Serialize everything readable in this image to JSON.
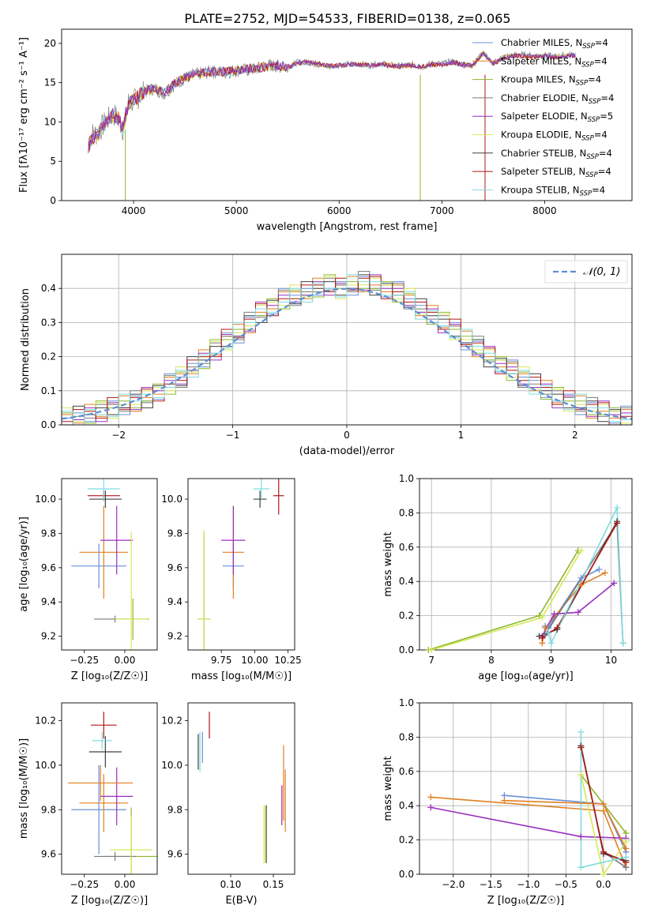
{
  "figure_title": "PLATE=2752, MJD=54533, FIBERID=0138, z=0.065",
  "series": [
    {
      "name": "Chabrier MILES, N",
      "sub": "SSP",
      "tail": "=4",
      "color": "#6a8fd8"
    },
    {
      "name": "Salpeter MILES, N",
      "sub": "SSP",
      "tail": "=4",
      "color": "#e07f20"
    },
    {
      "name": "Kroupa MILES, N",
      "sub": "SSP",
      "tail": "=4",
      "color": "#8cb82a"
    },
    {
      "name": "Chabrier ELODIE, N",
      "sub": "SSP",
      "tail": "=4",
      "color": "#7a7a7a"
    },
    {
      "name": "Salpeter ELODIE, N",
      "sub": "SSP",
      "tail": "=5",
      "color": "#9a2fbf"
    },
    {
      "name": "Kroupa ELODIE, N",
      "sub": "SSP",
      "tail": "=4",
      "color": "#d6e85a"
    },
    {
      "name": "Chabrier STELIB, N",
      "sub": "SSP",
      "tail": "=4",
      "color": "#404040"
    },
    {
      "name": "Salpeter STELIB, N",
      "sub": "SSP",
      "tail": "=4",
      "color": "#b01818"
    },
    {
      "name": "Kroupa STELIB, N",
      "sub": "SSP",
      "tail": "=4",
      "color": "#7fdce0"
    }
  ],
  "chart_data": [
    {
      "id": "spectrum",
      "type": "line",
      "xlabel": "wavelength [Angstrom, rest frame]",
      "ylabel": "Flux [fλ10⁻¹⁷ erg cm⁻² s⁻¹ A⁻¹]",
      "xlim": [
        3300,
        8850
      ],
      "ylim": [
        0,
        21.8
      ],
      "xticks": [
        4000,
        5000,
        6000,
        7000,
        8000
      ],
      "yticks": [
        0,
        5,
        10,
        15,
        20
      ],
      "data_gray": {
        "x": [
          3560,
          3600,
          3650,
          3700,
          3750,
          3800,
          3850,
          3900,
          3950,
          4000,
          4100,
          4200,
          4300,
          4400,
          4500,
          4600,
          4700,
          4800,
          4900,
          5000,
          5100,
          5200,
          5300,
          5400,
          5500,
          5600,
          5700,
          5800,
          5900,
          6000,
          6100,
          6200,
          6300,
          6400,
          6500,
          6600,
          6700,
          6800,
          6900,
          7000,
          7100,
          7200,
          7300,
          7400,
          7500,
          7600,
          7700,
          7800,
          7900,
          8000,
          8100,
          8200,
          8300
        ],
        "y": [
          7.0,
          8.5,
          8.5,
          9.5,
          10.3,
          11.0,
          10.5,
          9.0,
          12.5,
          12.6,
          13.8,
          14.3,
          13.6,
          14.8,
          15.6,
          16.0,
          16.3,
          16.4,
          16.3,
          16.6,
          16.6,
          16.8,
          17.2,
          17.1,
          17.0,
          17.6,
          17.6,
          17.3,
          17.0,
          17.3,
          17.3,
          17.4,
          17.2,
          17.5,
          17.2,
          17.1,
          17.3,
          17.0,
          17.4,
          17.4,
          17.7,
          17.3,
          17.2,
          18.8,
          17.4,
          18.3,
          18.5,
          18.5,
          18.4,
          18.5,
          18.3,
          18.5,
          18.6
        ]
      },
      "model": {
        "x": [
          3560,
          3600,
          3650,
          3700,
          3750,
          3800,
          3850,
          3900,
          3950,
          4000,
          4100,
          4200,
          4300,
          4400,
          4500,
          4600,
          4700,
          4800,
          4900,
          5000,
          5100,
          5200,
          5300,
          5400,
          5500,
          5600,
          5700,
          5800,
          5900,
          6000,
          6100,
          6200,
          6300,
          6400,
          6500,
          6600,
          6700,
          6800,
          6900,
          7000,
          7100,
          7200,
          7300,
          7400,
          7500,
          7600,
          7700,
          7800,
          7900,
          8000,
          8100,
          8200,
          8300
        ],
        "y": [
          6.8,
          8.0,
          8.4,
          9.5,
          10.2,
          10.8,
          10.4,
          9.2,
          12.3,
          12.7,
          13.9,
          14.2,
          13.8,
          14.9,
          15.6,
          16.0,
          16.3,
          16.5,
          16.4,
          16.6,
          16.7,
          16.8,
          17.1,
          17.1,
          17.0,
          17.5,
          17.6,
          17.4,
          17.1,
          17.2,
          17.3,
          17.3,
          17.2,
          17.4,
          17.2,
          17.1,
          17.2,
          17.0,
          17.3,
          17.3,
          17.6,
          17.3,
          17.2,
          18.8,
          17.4,
          18.2,
          18.4,
          18.4,
          18.3,
          18.4,
          18.2,
          18.4,
          18.5
        ]
      },
      "drops": [
        {
          "x": 3920,
          "to": 0
        },
        {
          "x": 6790,
          "to": 0
        },
        {
          "x": 7420,
          "to": 0
        }
      ]
    },
    {
      "id": "residuals",
      "type": "histogram",
      "xlabel": "(data-model)/error",
      "ylabel": "Normed distribution",
      "xlim": [
        -2.5,
        2.5
      ],
      "ylim": [
        0,
        0.5
      ],
      "xticks": [
        -2,
        -1,
        0,
        1,
        2
      ],
      "yticks": [
        0.0,
        0.1,
        0.2,
        0.3,
        0.4
      ],
      "legend_label": "𝒩(0, 1)",
      "bin_width": 0.1,
      "hist": [
        0.02,
        0.025,
        0.03,
        0.04,
        0.05,
        0.06,
        0.07,
        0.08,
        0.1,
        0.12,
        0.14,
        0.17,
        0.19,
        0.22,
        0.25,
        0.27,
        0.3,
        0.33,
        0.35,
        0.37,
        0.38,
        0.39,
        0.4,
        0.41,
        0.4,
        0.41,
        0.42,
        0.41,
        0.4,
        0.39,
        0.37,
        0.34,
        0.32,
        0.3,
        0.28,
        0.25,
        0.23,
        0.2,
        0.18,
        0.16,
        0.14,
        0.12,
        0.1,
        0.08,
        0.07,
        0.06,
        0.05,
        0.04,
        0.03,
        0.025
      ],
      "jitter": [
        0.0,
        -0.01,
        0.02,
        0.01,
        -0.02,
        0.03,
        -0.015,
        0.01,
        0.025,
        -0.03
      ]
    },
    {
      "id": "age_vs_Z",
      "type": "errorbar",
      "xlabel": "Z [log₁₀(Z/Z☉)]",
      "ylabel": "age  [log₁₀(age/yr)]",
      "xlim": [
        -0.39,
        0.2
      ],
      "ylim": [
        9.12,
        10.12
      ],
      "xticks": [
        -0.25,
        0.0
      ],
      "yticks": [
        9.2,
        9.4,
        9.6,
        9.8,
        10.0
      ],
      "points": [
        {
          "x": -0.16,
          "y": 9.61,
          "xe": 0.17,
          "ye": 0.13,
          "c": 0
        },
        {
          "x": -0.13,
          "y": 9.69,
          "xe": 0.15,
          "ye": 0.27,
          "c": 1
        },
        {
          "x": 0.05,
          "y": 9.3,
          "xe": 0.1,
          "ye": 0.12,
          "c": 2
        },
        {
          "x": -0.06,
          "y": 9.3,
          "xe": 0.13,
          "ye": 0.02,
          "c": 3
        },
        {
          "x": -0.05,
          "y": 9.76,
          "xe": 0.1,
          "ye": 0.2,
          "c": 4
        },
        {
          "x": 0.04,
          "y": 9.3,
          "xe": 0.1,
          "ye": 0.51,
          "c": 5
        },
        {
          "x": -0.12,
          "y": 10.0,
          "xe": 0.1,
          "ye": 0.05,
          "c": 6
        },
        {
          "x": -0.13,
          "y": 10.02,
          "xe": 0.1,
          "ye": 0.03,
          "c": 7
        },
        {
          "x": -0.13,
          "y": 10.06,
          "xe": 0.1,
          "ye": 0.07,
          "c": 8
        },
        {
          "x": -0.34,
          "y": 9.61,
          "xe": 0.0,
          "ye": 0.0,
          "c": 0
        }
      ]
    },
    {
      "id": "age_vs_mass",
      "type": "errorbar",
      "xlabel": "mass [log₁₀(M/M☉)]",
      "ylabel": "",
      "xlim": [
        9.5,
        10.3
      ],
      "ylim": [
        9.12,
        10.12
      ],
      "xticks": [
        9.75,
        10.0,
        10.25
      ],
      "yticks": [
        9.2,
        9.4,
        9.6,
        9.8,
        10.0
      ],
      "points": [
        {
          "x": 9.84,
          "y": 9.61,
          "xe": 0.08,
          "ye": 0.13,
          "c": 0
        },
        {
          "x": 9.84,
          "y": 9.69,
          "xe": 0.08,
          "ye": 0.27,
          "c": 1
        },
        {
          "x": 9.62,
          "y": 9.3,
          "xe": 0.05,
          "ye": 0.12,
          "c": 2
        },
        {
          "x": 9.62,
          "y": 9.3,
          "xe": 0.05,
          "ye": 0.5,
          "c": 3
        },
        {
          "x": 9.84,
          "y": 9.76,
          "xe": 0.09,
          "ye": 0.2,
          "c": 4
        },
        {
          "x": 9.62,
          "y": 9.3,
          "xe": 0.05,
          "ye": 0.52,
          "c": 5
        },
        {
          "x": 10.04,
          "y": 10.0,
          "xe": 0.05,
          "ye": 0.05,
          "c": 6
        },
        {
          "x": 10.18,
          "y": 10.02,
          "xe": 0.04,
          "ye": 0.11,
          "c": 7
        },
        {
          "x": 10.05,
          "y": 10.06,
          "xe": 0.06,
          "ye": 0.06,
          "c": 8
        }
      ]
    },
    {
      "id": "weight_vs_age",
      "type": "line",
      "xlabel": "age  [log₁₀(age/yr)]",
      "ylabel": "mass weight",
      "xlim": [
        6.8,
        10.35
      ],
      "ylim": [
        0,
        1
      ],
      "xticks": [
        7,
        8,
        9,
        10
      ],
      "yticks": [
        0.0,
        0.2,
        0.4,
        0.6,
        0.8,
        1.0
      ],
      "lines": [
        {
          "c": 0,
          "x": [
            8.9,
            8.95,
            9.5,
            9.8
          ],
          "y": [
            0.14,
            0.13,
            0.42,
            0.47
          ]
        },
        {
          "c": 1,
          "x": [
            8.85,
            8.9,
            9.5,
            9.9
          ],
          "y": [
            0.04,
            0.13,
            0.38,
            0.45
          ]
        },
        {
          "c": 2,
          "x": [
            6.95,
            8.8,
            9.45
          ],
          "y": [
            0.0,
            0.2,
            0.58
          ]
        },
        {
          "c": 3,
          "x": [
            8.9,
            10.1,
            10.2
          ],
          "y": [
            0.09,
            0.74,
            0.04
          ]
        },
        {
          "c": 4,
          "x": [
            8.85,
            9.05,
            9.45,
            10.05
          ],
          "y": [
            0.08,
            0.21,
            0.22,
            0.39
          ]
        },
        {
          "c": 5,
          "x": [
            7.0,
            8.85,
            9.5
          ],
          "y": [
            0.0,
            0.19,
            0.58
          ]
        },
        {
          "c": 6,
          "x": [
            8.8,
            9.1,
            10.1
          ],
          "y": [
            0.08,
            0.12,
            0.75
          ]
        },
        {
          "c": 7,
          "x": [
            8.85,
            9.1,
            10.1
          ],
          "y": [
            0.07,
            0.13,
            0.74
          ]
        },
        {
          "c": 8,
          "x": [
            8.95,
            9.0,
            10.1,
            10.2
          ],
          "y": [
            0.1,
            0.04,
            0.83,
            0.04
          ]
        }
      ]
    },
    {
      "id": "mass_vs_Z",
      "type": "errorbar",
      "xlabel": "Z [log₁₀(Z/Z☉)]",
      "ylabel": "mass [log₁₀(M/M☉)]",
      "xlim": [
        -0.39,
        0.2
      ],
      "ylim": [
        9.51,
        10.28
      ],
      "xticks": [
        -0.25,
        0.0
      ],
      "yticks": [
        9.6,
        9.8,
        10.0,
        10.2
      ],
      "points": [
        {
          "x": -0.16,
          "y": 9.8,
          "xe": 0.17,
          "ye": 0.2,
          "c": 0
        },
        {
          "x": -0.13,
          "y": 9.83,
          "xe": 0.15,
          "ye": 0.13,
          "c": 1
        },
        {
          "x": 0.04,
          "y": 9.59,
          "xe": 0.17,
          "ye": 0.22,
          "c": 2
        },
        {
          "x": -0.06,
          "y": 9.59,
          "xe": 0.13,
          "ye": 0.02,
          "c": 3
        },
        {
          "x": -0.05,
          "y": 9.86,
          "xe": 0.1,
          "ye": 0.13,
          "c": 4
        },
        {
          "x": 0.04,
          "y": 9.62,
          "xe": 0.13,
          "ye": 0.15,
          "c": 5
        },
        {
          "x": -0.12,
          "y": 10.06,
          "xe": 0.1,
          "ye": 0.07,
          "c": 6
        },
        {
          "x": -0.13,
          "y": 10.18,
          "xe": 0.08,
          "ye": 0.06,
          "c": 7
        },
        {
          "x": -0.14,
          "y": 10.11,
          "xe": 0.06,
          "ye": 0.04,
          "c": 8
        },
        {
          "x": -0.15,
          "y": 9.92,
          "xe": 0.2,
          "ye": 0.08,
          "c": 1
        }
      ]
    },
    {
      "id": "mass_vs_ebv",
      "type": "errorbar",
      "xlabel": "E(B-V)",
      "ylabel": "",
      "xlim": [
        0.05,
        0.175
      ],
      "ylim": [
        9.51,
        10.28
      ],
      "xticks": [
        0.1,
        0.15
      ],
      "yticks": [
        9.6,
        9.8,
        10.0,
        10.2
      ],
      "points": [
        {
          "x": 0.067,
          "y": 10.08,
          "xe": 0.0,
          "ye": 0.07,
          "c": 0
        },
        {
          "x": 0.164,
          "y": 9.84,
          "xe": 0.0,
          "ye": 0.14,
          "c": 1
        },
        {
          "x": 0.141,
          "y": 9.69,
          "xe": 0.0,
          "ye": 0.13,
          "c": 2
        },
        {
          "x": 0.142,
          "y": 9.69,
          "xe": 0.0,
          "ye": 0.13,
          "c": 3
        },
        {
          "x": 0.16,
          "y": 9.82,
          "xe": 0.0,
          "ye": 0.09,
          "c": 4
        },
        {
          "x": 0.139,
          "y": 9.69,
          "xe": 0.0,
          "ye": 0.13,
          "c": 5
        },
        {
          "x": 0.062,
          "y": 10.06,
          "xe": 0.0,
          "ye": 0.08,
          "c": 6
        },
        {
          "x": 0.075,
          "y": 10.18,
          "xe": 0.0,
          "ye": 0.06,
          "c": 7
        },
        {
          "x": 0.064,
          "y": 10.06,
          "xe": 0.0,
          "ye": 0.09,
          "c": 8
        },
        {
          "x": 0.162,
          "y": 9.92,
          "xe": 0.0,
          "ye": 0.17,
          "c": 1
        }
      ]
    },
    {
      "id": "weight_vs_Z",
      "type": "line",
      "xlabel": "Z [log₁₀(Z/Z☉)]",
      "ylabel": "mass weight",
      "xlim": [
        -2.45,
        0.38
      ],
      "ylim": [
        0,
        1
      ],
      "xticks": [
        -2.0,
        -1.5,
        -1.0,
        -0.5,
        0.0
      ],
      "yticks": [
        0.0,
        0.2,
        0.4,
        0.6,
        0.8,
        1.0
      ],
      "lines": [
        {
          "c": 0,
          "x": [
            -1.32,
            0.0,
            0.3
          ],
          "y": [
            0.46,
            0.41,
            0.13
          ]
        },
        {
          "c": 1,
          "x": [
            -2.3,
            0.0,
            0.3
          ],
          "y": [
            0.45,
            0.37,
            0.04
          ]
        },
        {
          "c": 2,
          "x": [
            -0.3,
            0.3
          ],
          "y": [
            0.58,
            0.24
          ]
        },
        {
          "c": 3,
          "x": [
            -0.3,
            0.0,
            0.3
          ],
          "y": [
            0.74,
            0.13,
            0.04
          ]
        },
        {
          "c": 4,
          "x": [
            -2.3,
            -0.3,
            0.3
          ],
          "y": [
            0.39,
            0.22,
            0.21
          ]
        },
        {
          "c": 5,
          "x": [
            -0.3,
            0.0,
            0.3
          ],
          "y": [
            0.58,
            0.0,
            0.19
          ]
        },
        {
          "c": 6,
          "x": [
            -0.3,
            0.0,
            0.3
          ],
          "y": [
            0.75,
            0.12,
            0.08
          ]
        },
        {
          "c": 7,
          "x": [
            -0.3,
            0.0,
            0.3
          ],
          "y": [
            0.74,
            0.13,
            0.07
          ]
        },
        {
          "c": 8,
          "x": [
            -0.3,
            -0.3,
            0.3
          ],
          "y": [
            0.83,
            0.04,
            0.1
          ]
        },
        {
          "c": 1,
          "x": [
            -1.32,
            0.0,
            0.3
          ],
          "y": [
            0.43,
            0.41,
            0.15
          ]
        }
      ]
    }
  ]
}
